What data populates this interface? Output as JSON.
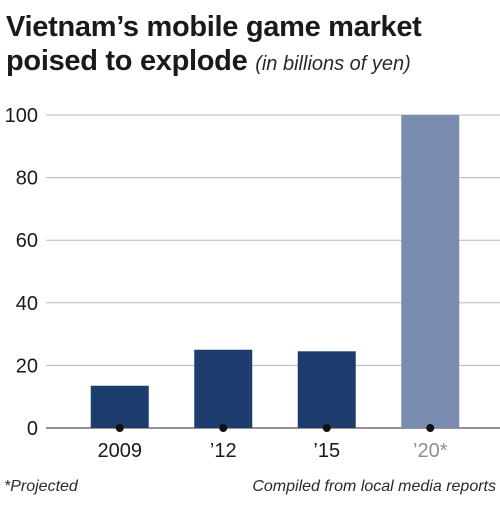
{
  "header": {
    "title": "Vietnam’s mobile game market poised to explode",
    "subtitle": "(in billions of yen)"
  },
  "footer": {
    "note": "*Projected",
    "source": "Compiled from local media reports"
  },
  "colors": {
    "bar_actual": "#1c3d6e",
    "bar_projected": "#7a8cb0",
    "label_projected": "#8f8f8f",
    "grid": "#b8b8b8",
    "text": "#1a1a1a"
  },
  "chart_data": {
    "type": "bar",
    "categories": [
      "2009",
      "’12",
      "’15",
      "’20*"
    ],
    "values": [
      13.5,
      25,
      24.5,
      100
    ],
    "projected": [
      false,
      false,
      false,
      true
    ],
    "ylim": [
      0,
      100
    ],
    "yticks": [
      0,
      20,
      40,
      60,
      80,
      100
    ],
    "grid": true,
    "xlabel": "",
    "ylabel": ""
  }
}
